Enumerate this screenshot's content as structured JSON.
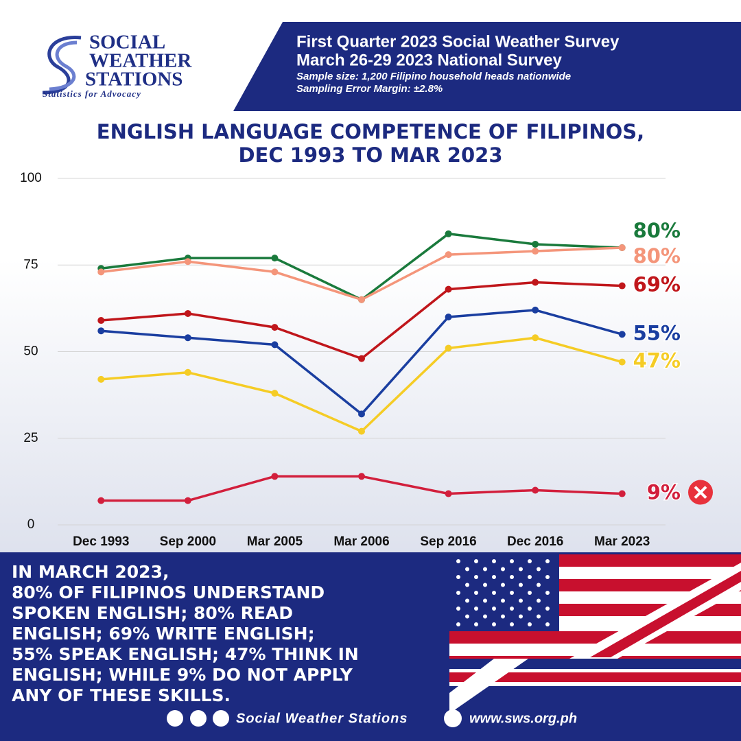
{
  "header": {
    "logo_lines": [
      "SOCIAL",
      "WEATHER",
      "STATIONS"
    ],
    "tagline": "Statistics for Advocacy",
    "survey_lines": [
      "First Quarter 2023 Social Weather Survey",
      "March 26-29 2023 National Survey"
    ],
    "details": [
      "Sample size: 1,200 Filipino household heads nationwide",
      "Sampling Error Margin: ±2.8%"
    ]
  },
  "chart_data": {
    "type": "line",
    "title": [
      "ENGLISH LANGUAGE COMPETENCE OF FILIPINOS,",
      "DEC 1993 TO MAR 2023"
    ],
    "categories": [
      "Dec 1993",
      "Sep 2000",
      "Mar 2005",
      "Mar 2006",
      "Sep 2016",
      "Dec 2016",
      "Mar 2023"
    ],
    "ylim": [
      0,
      100
    ],
    "yticks": [
      0,
      25,
      50,
      75,
      100
    ],
    "grid": true,
    "series": [
      {
        "color": "#1a7a3c",
        "values": [
          74,
          77,
          77,
          65,
          84,
          81,
          80
        ],
        "value_labels": [
          null,
          null,
          null,
          null,
          null,
          null,
          "80%"
        ]
      },
      {
        "color": "#f4957a",
        "values": [
          73,
          76,
          73,
          65,
          78,
          79,
          80
        ],
        "value_labels": [
          null,
          null,
          null,
          null,
          null,
          null,
          "80%"
        ]
      },
      {
        "color": "#c0161b",
        "values": [
          59,
          61,
          57,
          48,
          68,
          70,
          69
        ],
        "value_labels": [
          null,
          null,
          null,
          null,
          null,
          null,
          "69%"
        ]
      },
      {
        "color": "#1a3ea0",
        "values": [
          56,
          54,
          52,
          32,
          60,
          62,
          55
        ],
        "value_labels": [
          null,
          null,
          null,
          null,
          null,
          null,
          "55%"
        ]
      },
      {
        "color": "#f5cc25",
        "values": [
          42,
          44,
          38,
          27,
          51,
          54,
          47
        ],
        "value_labels": [
          null,
          null,
          null,
          null,
          null,
          null,
          "47%"
        ]
      },
      {
        "color": "#d21f3c",
        "values": [
          7,
          7,
          14,
          14,
          9,
          10,
          9
        ],
        "value_labels": [
          null,
          null,
          null,
          null,
          null,
          null,
          "9%"
        ]
      }
    ]
  },
  "summary_lines": [
    "IN MARCH 2023,",
    "80% OF FILIPINOS UNDERSTAND",
    "SPOKEN ENGLISH; 80% READ",
    "ENGLISH; 69% WRITE ENGLISH;",
    "55% SPEAK ENGLISH; 47% THINK IN",
    "ENGLISH; WHILE 9% DO NOT APPLY",
    "ANY OF THESE SKILLS."
  ],
  "footer": {
    "social": "Social Weather Stations",
    "website": "www.sws.org.ph"
  }
}
